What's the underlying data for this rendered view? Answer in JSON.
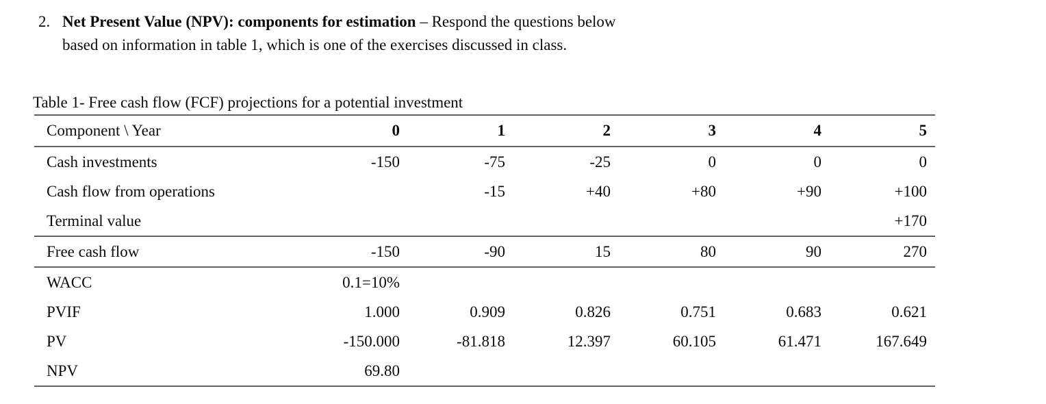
{
  "question": {
    "number": "2.",
    "title_bold": "Net Present Value (NPV): components for estimation",
    "line1_rest": " – Respond the questions below",
    "line2": "based on information in table 1, which is one of the exercises discussed in class."
  },
  "table": {
    "caption": "Table 1- Free cash flow (FCF) projections for a potential investment",
    "header": {
      "label": "Component \\ Year",
      "years": [
        "0",
        "1",
        "2",
        "3",
        "4",
        "5"
      ]
    },
    "rows": [
      {
        "label": "Cash investments",
        "values": [
          "-150",
          "-75",
          "-25",
          "0",
          "0",
          "0"
        ]
      },
      {
        "label": "Cash flow from operations",
        "values": [
          "",
          "-15",
          "+40",
          "+80",
          "+90",
          "+100"
        ]
      },
      {
        "label": "Terminal value",
        "values": [
          "",
          "",
          "",
          "",
          "",
          "+170"
        ]
      },
      {
        "label": "Free cash flow",
        "values": [
          "-150",
          "-90",
          "15",
          "80",
          "90",
          "270"
        ]
      },
      {
        "label": "WACC",
        "values": [
          "0.1=10%",
          "",
          "",
          "",
          "",
          ""
        ]
      },
      {
        "label": "PVIF",
        "values": [
          "1.000",
          "0.909",
          "0.826",
          "0.751",
          "0.683",
          "0.621"
        ]
      },
      {
        "label": "PV",
        "values": [
          "-150.000",
          "-81.818",
          "12.397",
          "60.105",
          "61.471",
          "167.649"
        ]
      },
      {
        "label": "NPV",
        "values": [
          "69.80",
          "",
          "",
          "",
          "",
          ""
        ]
      }
    ]
  }
}
